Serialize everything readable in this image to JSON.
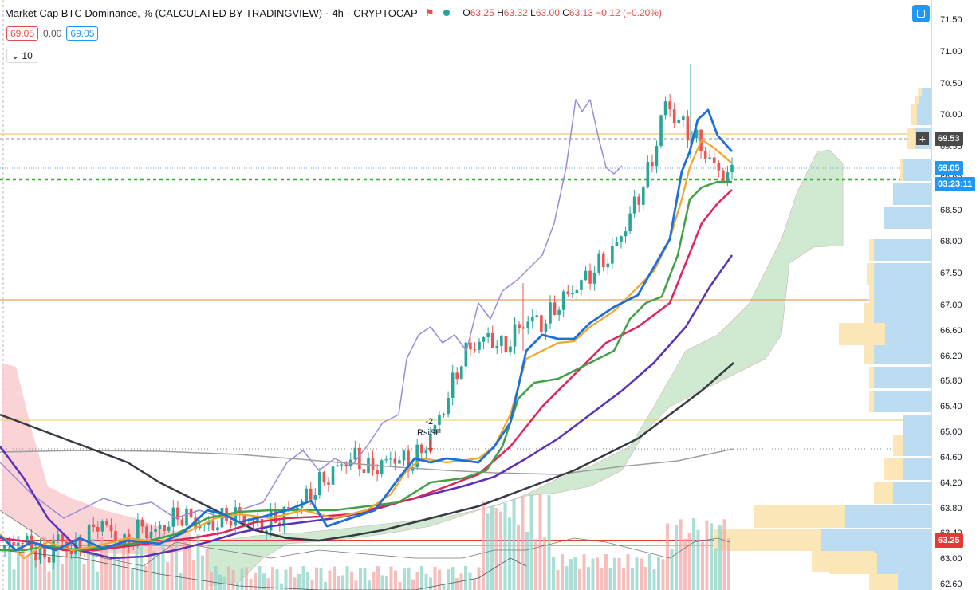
{
  "legend": {
    "title": "Market Cap BTC Dominance, % (CALCULATED BY TRADINGVIEW)",
    "sep": "·",
    "interval": "4h",
    "source": "CRYPTOCAP",
    "open_key": "O",
    "open": "63.25",
    "high_key": "H",
    "high": "63.32",
    "low_key": "L",
    "low": "63.00",
    "close_key": "C",
    "close": "63.13",
    "change": "−0.12 (−0.20%)"
  },
  "indicator_row": {
    "left_value": "69.05",
    "middle_value": "0.00",
    "right_value": "69.05"
  },
  "interval_toggle": {
    "arrow": "⌄",
    "value": "10"
  },
  "signal": {
    "count": "-2",
    "name": "RsiSE"
  },
  "price_scale": {
    "ticks": [
      "71.50",
      "71.00",
      "70.50",
      "70.00",
      "69.50",
      "69.00",
      "68.50",
      "68.00",
      "67.50",
      "67.00",
      "66.60",
      "66.20",
      "65.80",
      "65.40",
      "65.00",
      "64.60",
      "64.20",
      "63.80",
      "63.40",
      "63.00",
      "62.60"
    ],
    "badges": {
      "crosshair": "69.53",
      "last_price": "69.05",
      "countdown": "03:23:11",
      "open_price": "63.25"
    },
    "crosshair_symbol": "+"
  },
  "colors": {
    "up": "#26a69a",
    "down": "#ef5350",
    "ema_blue": "#1e6fd9",
    "ema_orange": "#f2a52b",
    "ema_green": "#43a047",
    "ema_red": "#e0245e",
    "ema_purple": "#5b32b5",
    "ema_black": "#363a45",
    "rsi": "#9c8ad8",
    "cloud_green": "#c8e6c9",
    "cloud_red": "#f8c8cc",
    "vp_up": "#bcdcf2",
    "vp_down": "#fbe6b8"
  },
  "chart_data": {
    "type": "candlestick",
    "title": "Market Cap BTC Dominance, % (CALCULATED BY TRADINGVIEW)",
    "interval": "4h",
    "ylim": [
      62.6,
      71.6
    ],
    "horizontal_levels": [
      69.6,
      69.53,
      69.05,
      68.9,
      66.95,
      65.07,
      64.63,
      63.25,
      63.2
    ],
    "price_path": [
      63.15,
      63.3,
      63.2,
      63.0,
      63.35,
      63.1,
      63.3,
      63.6,
      63.4,
      63.2,
      63.5,
      63.4,
      63.55,
      63.7,
      63.6,
      63.5,
      63.6,
      63.7,
      63.6,
      63.5,
      63.6,
      63.75,
      63.9,
      64.1,
      64.3,
      64.5,
      64.6,
      64.4,
      64.5,
      64.6,
      64.5,
      64.7,
      65.1,
      65.6,
      66.2,
      66.4,
      66.5,
      66.3,
      66.6,
      66.8,
      66.7,
      67.0,
      67.2,
      67.4,
      67.6,
      67.8,
      68.2,
      68.7,
      69.2,
      70.2,
      69.9,
      69.7,
      69.4,
      69.1,
      69.05
    ],
    "ema_fast": [
      63.2,
      63.25,
      63.3,
      63.3,
      63.4,
      63.5,
      63.55,
      63.6,
      63.65,
      63.7,
      63.8,
      63.9,
      64.1,
      64.3,
      64.4,
      64.5,
      64.7,
      65.3,
      66.0,
      66.2,
      66.5,
      66.6,
      66.9,
      67.2,
      67.5,
      67.8,
      68.2,
      68.8,
      69.5,
      69.8,
      69.6,
      69.4
    ],
    "ema_slow": [
      64.8,
      64.6,
      64.4,
      64.2,
      64.0,
      63.8,
      63.6,
      63.4,
      63.25,
      63.2,
      63.25,
      63.35,
      63.5,
      63.7,
      63.9,
      64.2,
      64.5,
      64.8,
      65.1,
      65.4,
      65.7,
      66.0
    ],
    "volume_profile_rows": 30
  }
}
